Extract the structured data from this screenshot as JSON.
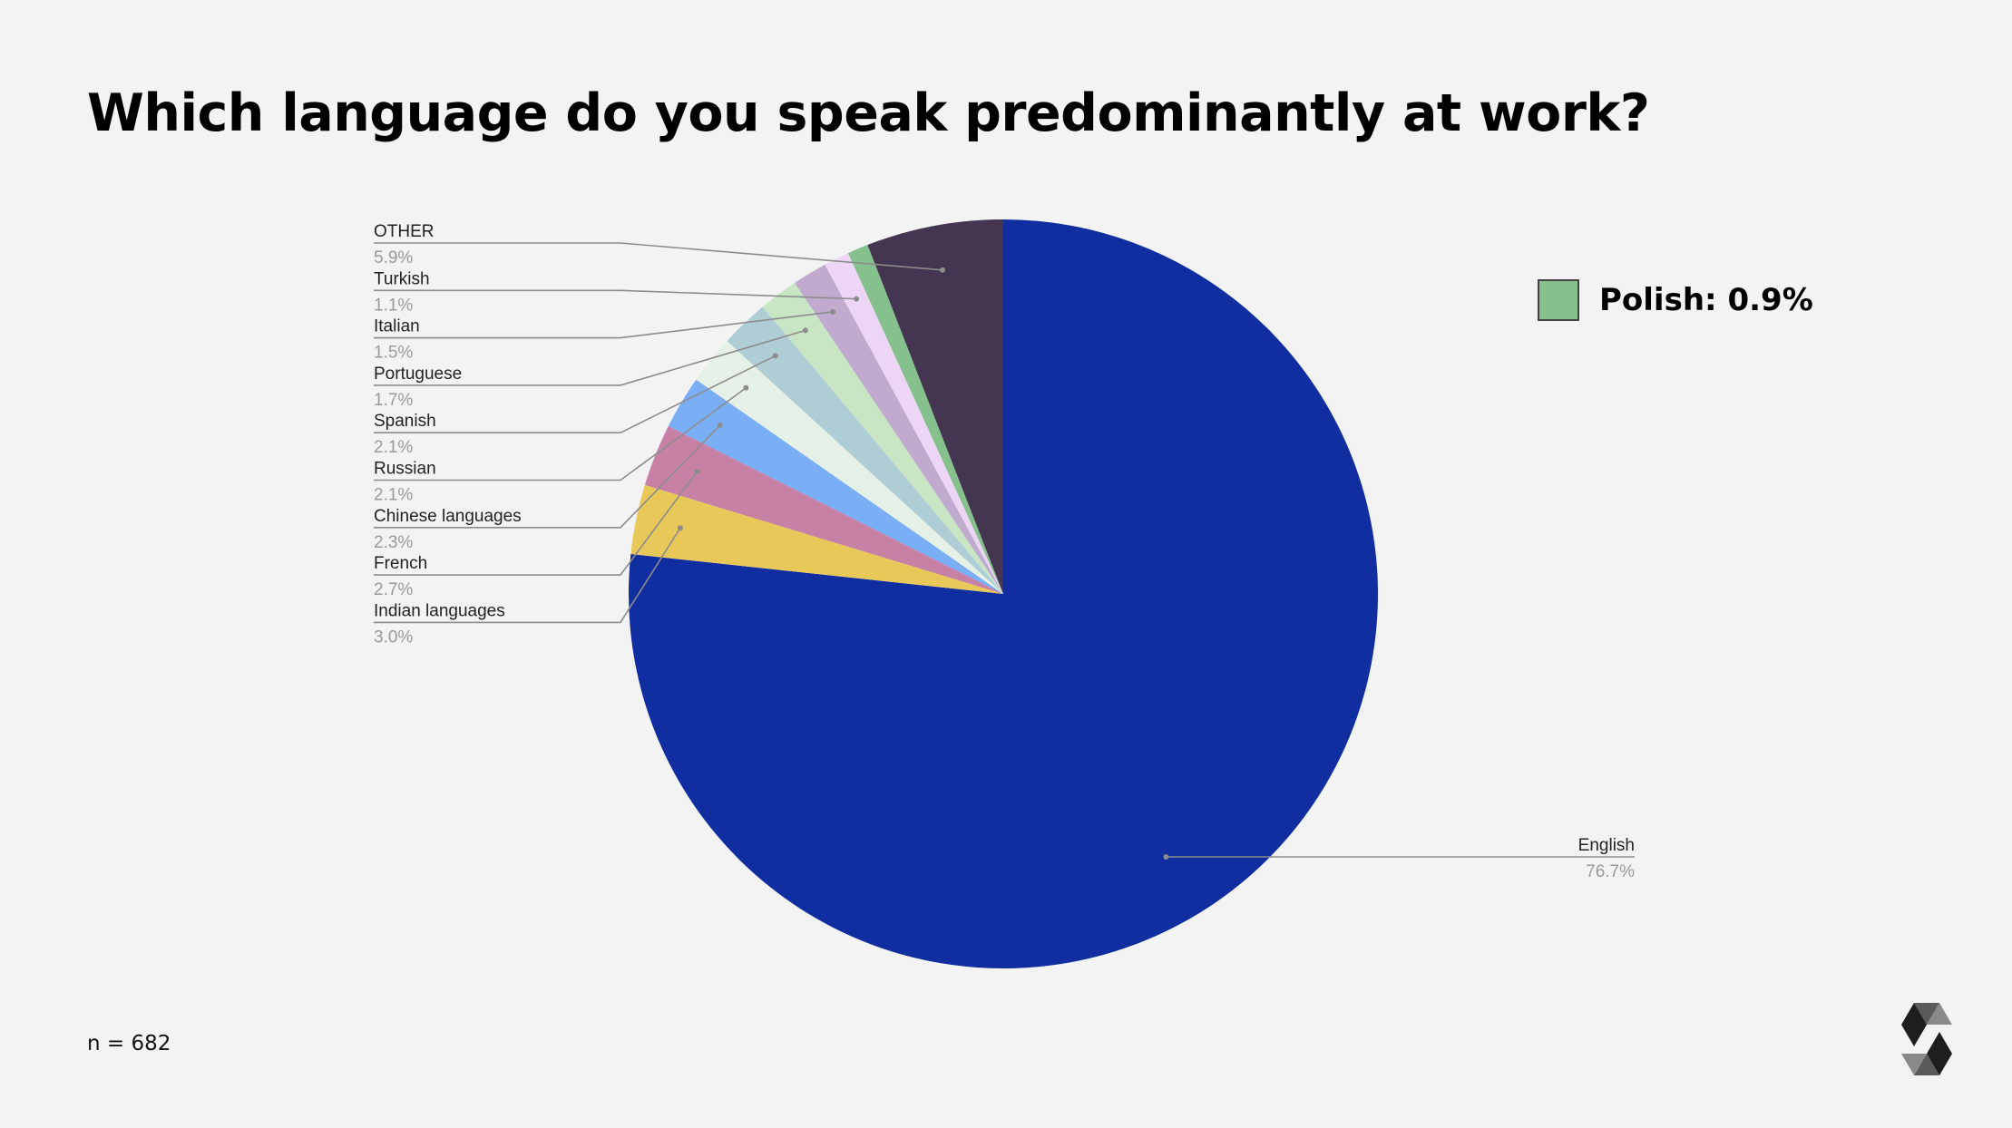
{
  "title": "Which language do you speak predominantly at work?",
  "footnote": "n = 682",
  "legend": {
    "label": "Polish: 0.9%",
    "color": "#86c08d"
  },
  "logo_icon": "solidity-logo-icon",
  "chart_data": {
    "type": "pie",
    "title": "Which language do you speak predominantly at work?",
    "start_angle_deg": 0,
    "direction": "clockwise",
    "slices": [
      {
        "label": "English",
        "value_label": "76.7%",
        "value": 76.7,
        "color": "#102ea0"
      },
      {
        "label": "Indian languages",
        "value_label": "3.0%",
        "value": 3.0,
        "color": "#e9c85a"
      },
      {
        "label": "French",
        "value_label": "2.7%",
        "value": 2.7,
        "color": "#c681a4"
      },
      {
        "label": "Chinese languages",
        "value_label": "2.3%",
        "value": 2.3,
        "color": "#7aaef5"
      },
      {
        "label": "Russian",
        "value_label": "2.1%",
        "value": 2.1,
        "color": "#e5f1e6"
      },
      {
        "label": "Spanish",
        "value_label": "2.1%",
        "value": 2.1,
        "color": "#afcdd5"
      },
      {
        "label": "Portuguese",
        "value_label": "1.7%",
        "value": 1.7,
        "color": "#c8e6c4"
      },
      {
        "label": "Italian",
        "value_label": "1.5%",
        "value": 1.5,
        "color": "#c0abcf"
      },
      {
        "label": "Turkish",
        "value_label": "1.1%",
        "value": 1.1,
        "color": "#edd5f5"
      },
      {
        "label": "Polish",
        "value_label": "0.9%",
        "value": 0.9,
        "color": "#86c08d"
      },
      {
        "label": "OTHER",
        "value_label": "5.9%",
        "value": 5.9,
        "color": "#443550"
      }
    ]
  }
}
